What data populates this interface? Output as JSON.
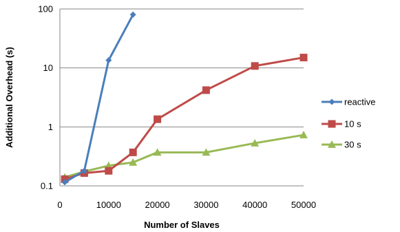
{
  "chart_data": {
    "type": "line",
    "title": "",
    "xlabel": "Number of Slaves",
    "ylabel": "Additional Overhead (s)",
    "x_ticks": [
      0,
      10000,
      20000,
      30000,
      40000,
      50000
    ],
    "x_tick_labels": [
      "0",
      "10000",
      "20000",
      "30000",
      "40000",
      "50000"
    ],
    "y_scale": "log",
    "y_ticks": [
      0.1,
      1,
      10,
      100
    ],
    "y_tick_labels": [
      "0.1",
      "1",
      "10",
      "100"
    ],
    "xlim": [
      0,
      50000
    ],
    "ylim": [
      0.1,
      100
    ],
    "grid": "horizontal",
    "legend_position": "right",
    "series": [
      {
        "name": "reactive",
        "color": "#4a7ebb",
        "marker": "diamond",
        "x": [
          1000,
          5000,
          10000,
          15000
        ],
        "y": [
          0.115,
          0.18,
          13.5,
          80
        ]
      },
      {
        "name": "10 s",
        "color": "#be4b48",
        "marker": "square",
        "x": [
          1000,
          5000,
          10000,
          15000,
          20000,
          30000,
          40000,
          50000
        ],
        "y": [
          0.13,
          0.165,
          0.18,
          0.37,
          1.35,
          4.2,
          10.8,
          15
        ]
      },
      {
        "name": "30 s",
        "color": "#98b954",
        "marker": "triangle",
        "x": [
          1000,
          5000,
          10000,
          15000,
          20000,
          30000,
          40000,
          50000
        ],
        "y": [
          0.14,
          0.175,
          0.22,
          0.25,
          0.37,
          0.37,
          0.53,
          0.73
        ]
      }
    ]
  }
}
